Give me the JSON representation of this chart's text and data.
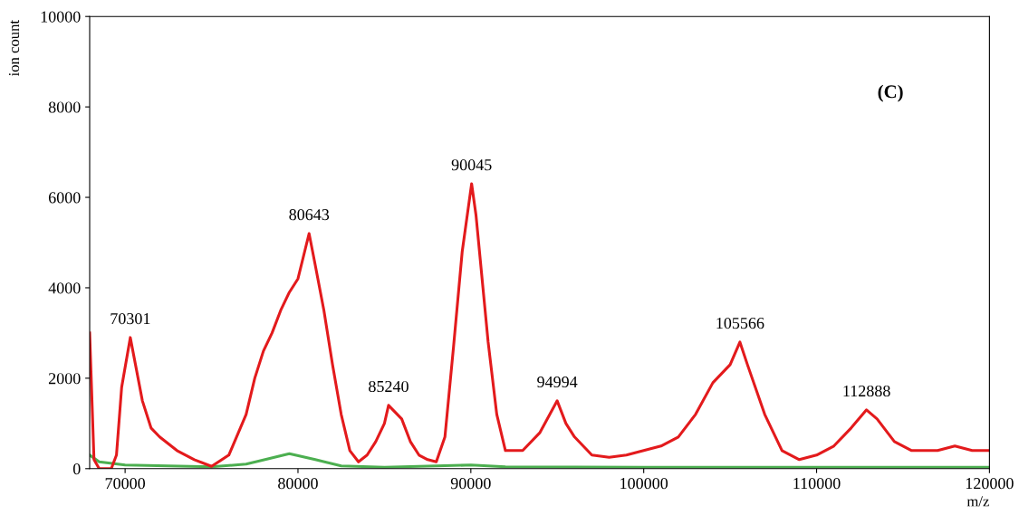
{
  "chart_data": {
    "type": "line",
    "xlabel": "m/z",
    "ylabel": "ion count",
    "xlim": [
      67950,
      120000
    ],
    "xticks": [
      70000,
      80000,
      90000,
      100000,
      110000,
      120000
    ],
    "ylim": [
      0,
      10000
    ],
    "yticks": [
      0,
      2000,
      4000,
      6000,
      8000,
      10000
    ],
    "grid": false,
    "legend": false,
    "marker": "none",
    "line_style": "solid",
    "series": [
      {
        "color": "#e31a1c",
        "x": [
          67950,
          68200,
          68500,
          69200,
          69500,
          69800,
          70300,
          70600,
          71000,
          71500,
          72000,
          73000,
          74000,
          75000,
          76000,
          77000,
          77500,
          78000,
          78500,
          79000,
          79500,
          80000,
          80643,
          81000,
          81500,
          82000,
          82500,
          83000,
          83500,
          84000,
          84500,
          85000,
          85240,
          86000,
          86500,
          87000,
          87500,
          88000,
          88500,
          89000,
          89500,
          90045,
          90300,
          90700,
          91000,
          91500,
          92000,
          93000,
          94000,
          94994,
          95500,
          96000,
          97000,
          98000,
          99000,
          100000,
          101000,
          102000,
          103000,
          104000,
          105000,
          105566,
          106000,
          107000,
          108000,
          109000,
          110000,
          111000,
          112000,
          112888,
          113500,
          114500,
          115500,
          117000,
          118000,
          119000,
          120000
        ],
        "values": [
          3000,
          200,
          0,
          0,
          300,
          1800,
          2900,
          2300,
          1500,
          900,
          700,
          400,
          200,
          50,
          300,
          1200,
          2000,
          2600,
          3000,
          3500,
          3900,
          4200,
          5200,
          4500,
          3500,
          2300,
          1200,
          400,
          150,
          300,
          600,
          1000,
          1400,
          1100,
          600,
          300,
          200,
          150,
          700,
          2700,
          4800,
          6300,
          5600,
          4000,
          2800,
          1200,
          400,
          400,
          800,
          1500,
          1000,
          700,
          300,
          250,
          300,
          400,
          500,
          700,
          1200,
          1900,
          2300,
          2800,
          2300,
          1200,
          400,
          200,
          300,
          500,
          900,
          1300,
          1100,
          600,
          400,
          400,
          500,
          400,
          400
        ]
      },
      {
        "color": "#4caf50",
        "x": [
          67950,
          68500,
          70000,
          75000,
          77000,
          79500,
          81000,
          82500,
          85000,
          90000,
          92000,
          100000,
          120000
        ],
        "values": [
          300,
          150,
          80,
          40,
          100,
          330,
          200,
          60,
          30,
          80,
          40,
          30,
          30
        ]
      }
    ],
    "annotations": [
      {
        "text": "70301",
        "x": 70301,
        "y": 2900
      },
      {
        "text": "80643",
        "x": 80643,
        "y": 5200
      },
      {
        "text": "85240",
        "x": 85240,
        "y": 1400
      },
      {
        "text": "90045",
        "x": 90045,
        "y": 6300
      },
      {
        "text": "94994",
        "x": 94994,
        "y": 1500
      },
      {
        "text": "105566",
        "x": 105566,
        "y": 2800
      },
      {
        "text": "112888",
        "x": 112888,
        "y": 1300
      },
      "(C)"
    ]
  }
}
